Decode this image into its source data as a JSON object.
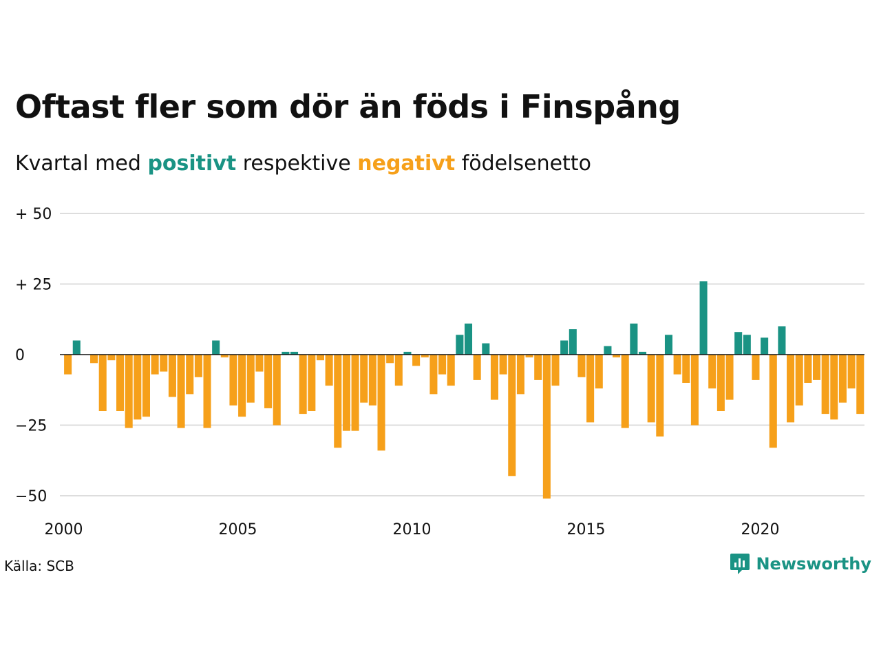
{
  "title": "Oftast fler som dör än föds i Finspång",
  "subtitle": {
    "prefix": "Kvartal med",
    "positive_word": "positivt",
    "middle": "respektive",
    "negative_word": "negativt",
    "suffix": "födelsenetto"
  },
  "colors": {
    "positive": "#1a9384",
    "negative": "#f6a01a",
    "grid": "#dddddd",
    "axis": "#111111"
  },
  "source": "Källa: SCB",
  "brand": {
    "name": "Newsworthy",
    "icon": "bar-chart-badge-icon"
  },
  "chart_data": {
    "type": "bar",
    "x_start": "2000-Q1",
    "x_ticks": [
      2000,
      2005,
      2010,
      2015,
      2020
    ],
    "y_ticks": [
      50,
      25,
      0,
      -25,
      -50
    ],
    "y_tick_labels": [
      "+ 50",
      "+ 25",
      "0",
      "−25",
      "−50"
    ],
    "ylim": [
      -52,
      52
    ],
    "grid": true,
    "values": [
      -7,
      5,
      0,
      -3,
      -20,
      -2,
      -20,
      -26,
      -23,
      -22,
      -7,
      -6,
      -15,
      -26,
      -14,
      -8,
      -26,
      5,
      -1,
      -18,
      -22,
      -17,
      -6,
      -19,
      -25,
      1,
      1,
      -21,
      -20,
      -2,
      -11,
      -33,
      -27,
      -27,
      -17,
      -18,
      -34,
      -3,
      -11,
      1,
      -4,
      -1,
      -14,
      -7,
      -11,
      7,
      11,
      -9,
      4,
      -16,
      -7,
      -43,
      -14,
      -1,
      -9,
      -51,
      -11,
      5,
      9,
      -8,
      -24,
      -12,
      3,
      -1,
      -26,
      11,
      1,
      -24,
      -29,
      7,
      -7,
      -10,
      -25,
      26,
      -12,
      -20,
      -16,
      8,
      7,
      -9,
      6,
      -33,
      10,
      -24,
      -18,
      -10,
      -9,
      -21,
      -23,
      -17,
      -12,
      -21
    ]
  }
}
